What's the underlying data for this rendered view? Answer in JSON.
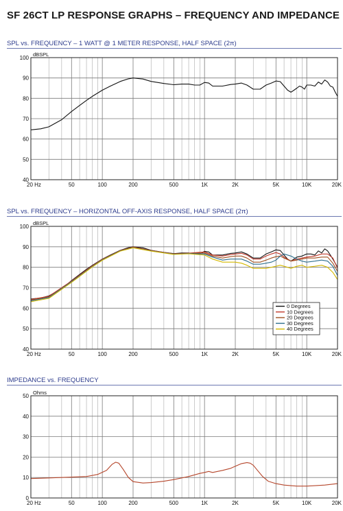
{
  "title": "SF 26CT LP RESPONSE GRAPHS – FREQUENCY AND IMPEDANCE",
  "chart_data": [
    {
      "type": "line",
      "title": "SPL vs. FREQUENCY – 1 WATT @ 1 METER RESPONSE, HALF SPACE (2π)",
      "ylabel": "dBSPL",
      "xscale": "log",
      "xlim": [
        20,
        20000
      ],
      "ylim": [
        40,
        100
      ],
      "grid": true,
      "xticks": [
        20,
        50,
        100,
        200,
        500,
        1000,
        2000,
        5000,
        10000,
        20000
      ],
      "xtick_labels": [
        "20  Hz",
        "50",
        "100",
        "200",
        "500",
        "1K",
        "2K",
        "5K",
        "10K",
        "20K"
      ],
      "yticks": [
        40,
        50,
        60,
        70,
        80,
        90,
        100
      ],
      "ytick_labels": [
        "40",
        "50",
        "60",
        "70",
        "80",
        "90",
        "100"
      ],
      "series": [
        {
          "color": "#111111",
          "x": [
            20,
            25,
            30,
            40,
            50,
            60,
            70,
            80,
            100,
            120,
            150,
            180,
            200,
            250,
            300,
            400,
            500,
            600,
            700,
            800,
            900,
            1000,
            1100,
            1200,
            1500,
            1800,
            2000,
            2300,
            2600,
            3000,
            3500,
            4000,
            4500,
            5000,
            5500,
            6000,
            6500,
            7000,
            7500,
            8000,
            8500,
            9000,
            9500,
            10000,
            11000,
            12000,
            13000,
            14000,
            15000,
            16000,
            17000,
            18000,
            19000,
            20000
          ],
          "y": [
            64.5,
            65,
            66,
            69.5,
            73.5,
            76.5,
            79,
            81,
            84,
            86,
            88.3,
            89.6,
            90,
            89.5,
            88.3,
            87.3,
            86.7,
            87,
            87,
            86.5,
            86.5,
            87.8,
            87.5,
            86,
            86,
            86.8,
            87,
            87.5,
            86.5,
            84.5,
            84.5,
            86.5,
            87.5,
            88.5,
            88.2,
            86,
            84,
            83,
            84,
            85,
            86,
            85.5,
            84.5,
            86.5,
            86.5,
            86,
            88,
            87,
            89,
            88,
            86,
            85.5,
            83,
            81
          ]
        }
      ]
    },
    {
      "type": "line",
      "title": "SPL vs. FREQUENCY – HORIZONTAL OFF-AXIS RESPONSE, HALF SPACE (2π)",
      "ylabel": "dBSPL",
      "xscale": "log",
      "xlim": [
        20,
        20000
      ],
      "ylim": [
        40,
        100
      ],
      "grid": true,
      "legend": "lower-right",
      "xticks": [
        20,
        50,
        100,
        200,
        500,
        1000,
        2000,
        5000,
        10000,
        20000
      ],
      "xtick_labels": [
        "20  Hz",
        "50",
        "100",
        "200",
        "500",
        "1K",
        "2K",
        "5K",
        "10K",
        "20K"
      ],
      "yticks": [
        40,
        50,
        60,
        70,
        80,
        90,
        100
      ],
      "ytick_labels": [
        "40",
        "50",
        "60",
        "70",
        "80",
        "90",
        "100"
      ],
      "series": [
        {
          "name": "0 Degrees",
          "color": "#111111",
          "x": [
            20,
            25,
            30,
            40,
            50,
            60,
            70,
            80,
            100,
            120,
            150,
            180,
            200,
            250,
            300,
            400,
            500,
            600,
            700,
            800,
            900,
            1000,
            1100,
            1200,
            1500,
            1800,
            2000,
            2300,
            2600,
            3000,
            3500,
            4000,
            4500,
            5000,
            5500,
            6000,
            6500,
            7000,
            7500,
            8000,
            9000,
            10000,
            11000,
            12000,
            13000,
            14000,
            15000,
            16000,
            17000,
            18000,
            20000
          ],
          "y": [
            64.5,
            65,
            66,
            69.5,
            73.5,
            76.5,
            79,
            81,
            84,
            86,
            88.3,
            89.6,
            90,
            89.5,
            88.3,
            87.3,
            86.7,
            87,
            87,
            86.5,
            86.5,
            87.8,
            87.5,
            86,
            86,
            86.8,
            87,
            87.5,
            86.5,
            84.5,
            84.5,
            86.5,
            87.5,
            88.5,
            88.2,
            86,
            84,
            83,
            84,
            85,
            85.5,
            86.5,
            86.5,
            86,
            88,
            87,
            89,
            88,
            86,
            84,
            80
          ]
        },
        {
          "name": "10 Degrees",
          "color": "#c0392b",
          "x": [
            20,
            30,
            50,
            80,
            100,
            150,
            200,
            300,
            500,
            700,
            1000,
            1200,
            1500,
            1800,
            2000,
            2300,
            2600,
            3000,
            3500,
            4000,
            4500,
            5000,
            5500,
            6000,
            7000,
            8000,
            9000,
            10000,
            12000,
            14000,
            16000,
            18000,
            20000
          ],
          "y": [
            64.3,
            65.8,
            73.3,
            80.8,
            83.9,
            88.2,
            89.9,
            88.2,
            86.6,
            86.9,
            87.5,
            86,
            85.5,
            86.2,
            86.5,
            86.8,
            86,
            84,
            84,
            85.5,
            86.5,
            87.2,
            86.5,
            85,
            83,
            84,
            84.5,
            85,
            85.5,
            86.5,
            86.5,
            84.5,
            79.5
          ]
        },
        {
          "name": "20 Degrees",
          "color": "#a05020",
          "x": [
            20,
            30,
            50,
            80,
            100,
            150,
            200,
            300,
            500,
            700,
            1000,
            1200,
            1500,
            1800,
            2000,
            2300,
            2600,
            3000,
            3500,
            4000,
            4500,
            5000,
            5500,
            6000,
            7000,
            8000,
            9000,
            10000,
            12000,
            14000,
            16000,
            18000,
            20000
          ],
          "y": [
            64,
            65.5,
            73.1,
            80.6,
            83.8,
            88.1,
            89.8,
            88.1,
            86.5,
            86.8,
            87,
            85.5,
            84.5,
            85.2,
            85.5,
            85.5,
            84.5,
            82.5,
            82.5,
            83.5,
            84.5,
            85.2,
            85.5,
            84.5,
            83,
            83.5,
            84,
            84.5,
            84.5,
            85,
            85,
            82,
            78
          ]
        },
        {
          "name": "30 Degrees",
          "color": "#2e6f8e",
          "x": [
            20,
            30,
            50,
            80,
            100,
            150,
            200,
            300,
            500,
            700,
            1000,
            1200,
            1500,
            1800,
            2000,
            2300,
            2600,
            3000,
            3500,
            4000,
            4500,
            5000,
            5500,
            6000,
            7000,
            8000,
            9000,
            10000,
            12000,
            14000,
            16000,
            18000,
            20000
          ],
          "y": [
            63.6,
            65.2,
            72.9,
            80.4,
            83.6,
            88,
            89.6,
            88,
            86.4,
            86.7,
            86.5,
            85,
            83.5,
            84,
            84,
            84,
            83,
            81.5,
            81.5,
            82,
            82.5,
            83.5,
            85.5,
            86.5,
            85.5,
            84,
            83,
            82.5,
            83,
            83.5,
            83,
            80.5,
            76
          ]
        },
        {
          "name": "40 Degrees",
          "color": "#d4b800",
          "x": [
            20,
            30,
            50,
            80,
            100,
            150,
            200,
            300,
            500,
            700,
            1000,
            1200,
            1500,
            1800,
            2000,
            2300,
            2600,
            3000,
            3500,
            4000,
            4500,
            5000,
            5500,
            6000,
            7000,
            8000,
            9000,
            10000,
            12000,
            14000,
            16000,
            18000,
            20000
          ],
          "y": [
            63.2,
            64.8,
            72.6,
            80.2,
            83.4,
            87.9,
            89.5,
            87.9,
            86.3,
            86.6,
            86,
            84,
            82.5,
            82.5,
            82.5,
            82,
            81,
            79.5,
            79.5,
            79.5,
            80,
            80.5,
            81,
            80.5,
            79.5,
            80.5,
            81,
            80,
            80.5,
            81,
            80,
            77.5,
            74
          ]
        }
      ]
    },
    {
      "type": "line",
      "title": "IMPEDANCE vs. FREQUENCY",
      "ylabel": "Ohms",
      "xscale": "log",
      "xlim": [
        20,
        20000
      ],
      "ylim": [
        0,
        50
      ],
      "grid": true,
      "xticks": [
        20,
        50,
        100,
        200,
        500,
        1000,
        2000,
        5000,
        10000,
        20000
      ],
      "xtick_labels": [
        "20  Hz",
        "50",
        "100",
        "200",
        "500",
        "1K",
        "2K",
        "5K",
        "10K",
        "20K"
      ],
      "yticks": [
        0,
        10,
        20,
        30,
        40,
        50
      ],
      "ytick_labels": [
        "0",
        "10",
        "20",
        "30",
        "40",
        "50"
      ],
      "series": [
        {
          "color": "#b5452a",
          "x": [
            20,
            30,
            50,
            70,
            90,
            110,
            125,
            135,
            145,
            160,
            180,
            200,
            250,
            300,
            400,
            500,
            700,
            900,
            1000,
            1100,
            1200,
            1500,
            1800,
            2000,
            2300,
            2600,
            2800,
            3000,
            3300,
            3700,
            4200,
            5000,
            6000,
            7000,
            8000,
            10000,
            12000,
            15000,
            20000
          ],
          "y": [
            9.5,
            9.8,
            10.2,
            10.5,
            11.5,
            13.5,
            16.5,
            17.5,
            17,
            14,
            10,
            8,
            7.3,
            7.5,
            8.2,
            9,
            10.5,
            12,
            12.5,
            13,
            12.5,
            13.5,
            14.5,
            15.5,
            16.8,
            17.3,
            17,
            16,
            13.5,
            10.5,
            8.2,
            7,
            6.3,
            6,
            5.8,
            5.8,
            6,
            6.3,
            7
          ]
        }
      ]
    }
  ]
}
